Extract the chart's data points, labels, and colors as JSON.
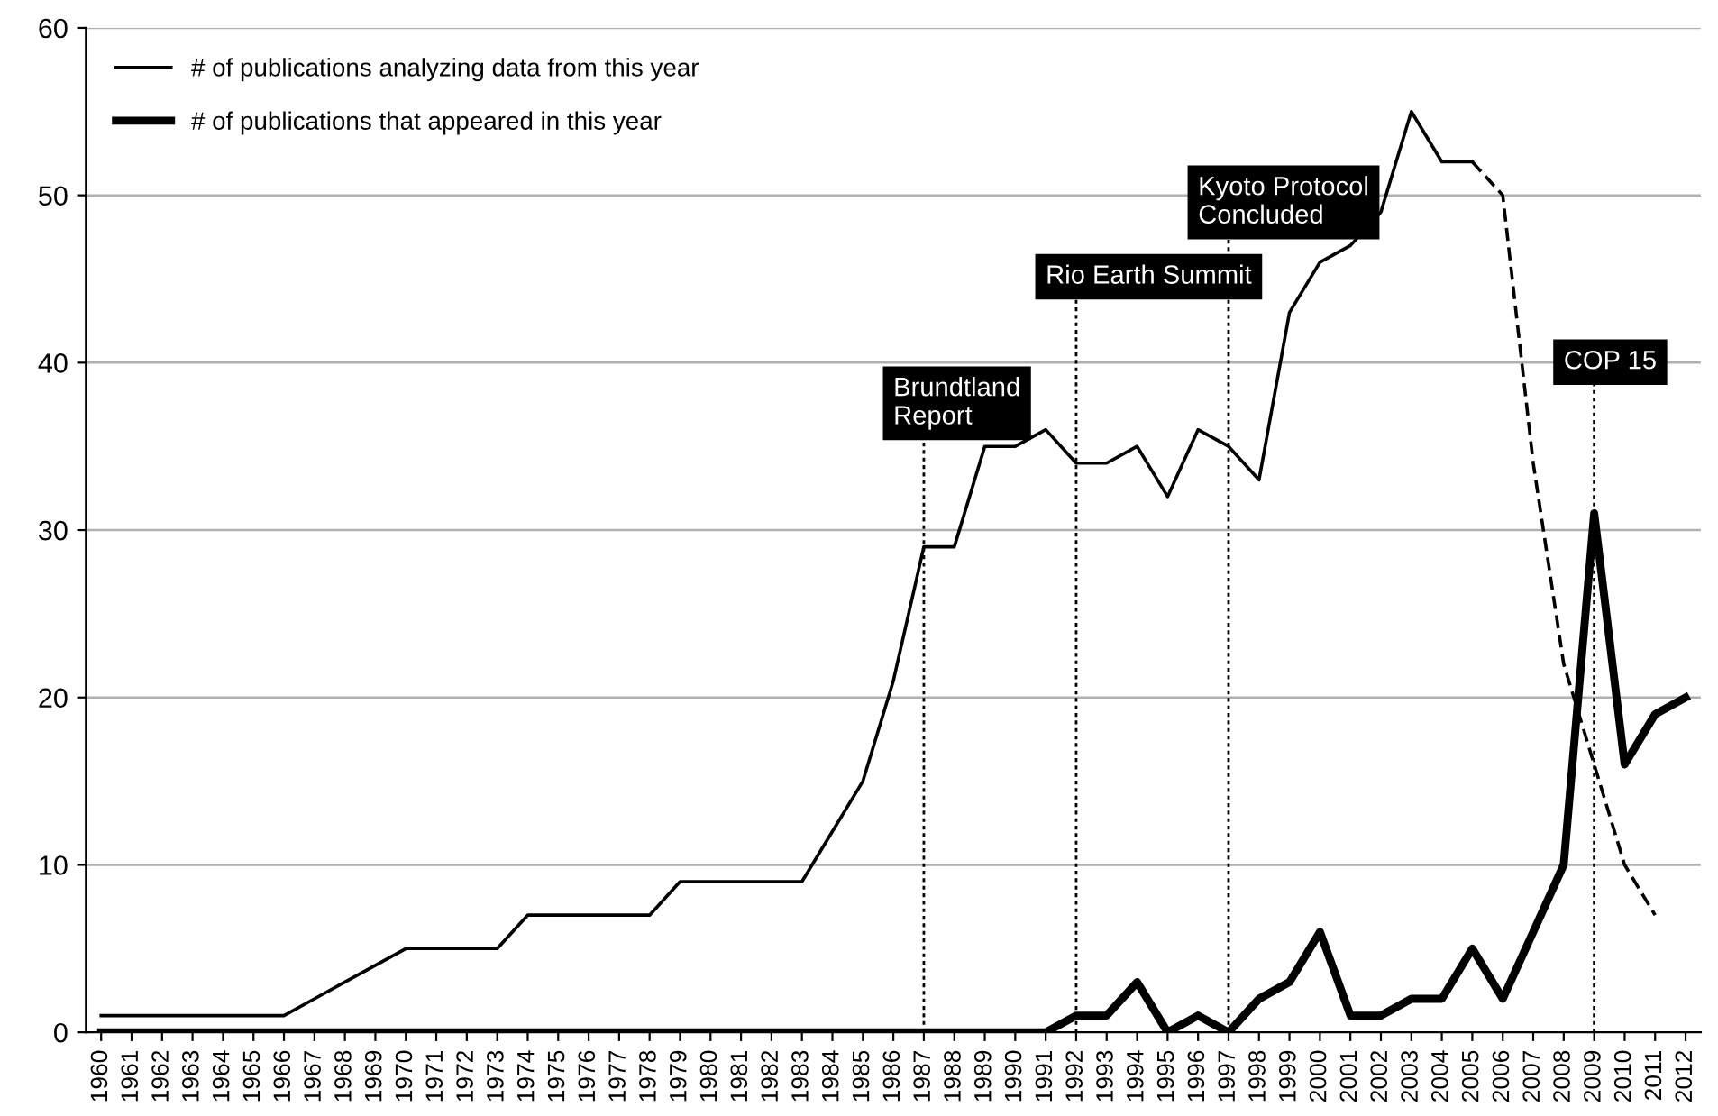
{
  "chart_data": {
    "type": "line",
    "categories": [
      "1960",
      "1961",
      "1962",
      "1963",
      "1964",
      "1965",
      "1966",
      "1967",
      "1968",
      "1969",
      "1970",
      "1971",
      "1972",
      "1973",
      "1974",
      "1975",
      "1976",
      "1977",
      "1978",
      "1979",
      "1980",
      "1981",
      "1982",
      "1983",
      "1984",
      "1985",
      "1986",
      "1987",
      "1988",
      "1989",
      "1990",
      "1991",
      "1992",
      "1993",
      "1994",
      "1995",
      "1996",
      "1997",
      "1998",
      "1999",
      "2000",
      "2001",
      "2002",
      "2003",
      "2004",
      "2005",
      "2006",
      "2007",
      "2008",
      "2009",
      "2010",
      "2011",
      "2012"
    ],
    "series": [
      {
        "name": "# of publications analyzing data from this year",
        "color": "#000000",
        "line_style": "solid",
        "values": [
          1,
          1,
          1,
          1,
          1,
          1,
          1,
          2,
          3,
          4,
          5,
          5,
          5,
          5,
          7,
          7,
          7,
          7,
          7,
          9,
          9,
          9,
          9,
          9,
          12,
          15,
          21,
          29,
          29,
          35,
          35,
          36,
          34,
          34,
          35,
          32,
          36,
          35,
          33,
          43,
          46,
          47,
          49,
          55,
          52,
          52,
          null,
          null,
          null,
          null,
          null,
          null,
          null
        ]
      },
      {
        "color": "#000000",
        "line_style": "dashed",
        "values": [
          null,
          null,
          null,
          null,
          null,
          null,
          null,
          null,
          null,
          null,
          null,
          null,
          null,
          null,
          null,
          null,
          null,
          null,
          null,
          null,
          null,
          null,
          null,
          null,
          null,
          null,
          null,
          null,
          null,
          null,
          null,
          null,
          null,
          null,
          null,
          null,
          null,
          null,
          null,
          null,
          null,
          null,
          null,
          null,
          null,
          52,
          50,
          34,
          22,
          16,
          10,
          7,
          null
        ]
      },
      {
        "name": "# of publications that appeared in this year",
        "color": "#000000",
        "line_style": "solid",
        "values": [
          0,
          0,
          0,
          0,
          0,
          0,
          0,
          0,
          0,
          0,
          0,
          0,
          0,
          0,
          0,
          0,
          0,
          0,
          0,
          0,
          0,
          0,
          0,
          0,
          0,
          0,
          0,
          0,
          0,
          0,
          0,
          0,
          1,
          1,
          3,
          0,
          1,
          0,
          2,
          3,
          6,
          1,
          1,
          2,
          2,
          5,
          2,
          6,
          10,
          31,
          16,
          19,
          20
        ]
      }
    ],
    "ylim": [
      0,
      60
    ],
    "yticks": [
      0,
      10,
      20,
      30,
      40,
      50,
      60
    ],
    "grid": "y",
    "legend": "top left",
    "marker": "none",
    "ref_lines": [
      {
        "axis": "x",
        "value": "1987",
        "label": "Brundtland\nReport",
        "line_style": "dotted"
      },
      {
        "axis": "x",
        "value": "1992",
        "label": "Rio Earth Summit",
        "line_style": "dotted"
      },
      {
        "axis": "x",
        "value": "1997",
        "label": "Kyoto Protocol\nConcluded",
        "line_style": "dotted"
      },
      {
        "axis": "x",
        "value": "2009",
        "label": "COP 15",
        "line_style": "dotted"
      }
    ]
  }
}
